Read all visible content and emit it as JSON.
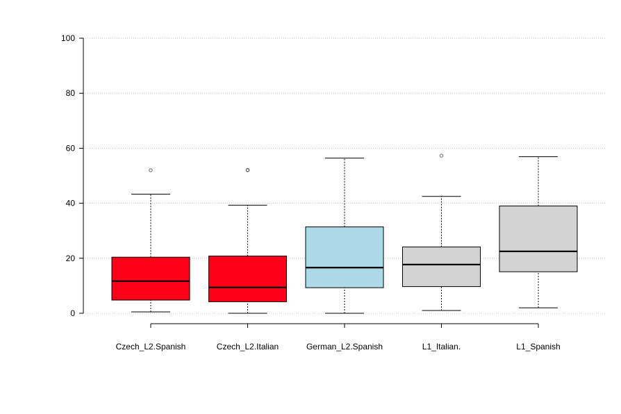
{
  "chart_data": {
    "type": "boxplot",
    "title": "",
    "xlabel": "",
    "ylabel": "",
    "ylim": [
      0,
      100
    ],
    "yticks": [
      0,
      20,
      40,
      60,
      80,
      100
    ],
    "grid": "horizontal dotted",
    "categories": [
      "Czech_L2.Spanish",
      "Czech_L2.Italian",
      "German_L2.Spanish",
      "L1_Italian.",
      "L1_Spanish"
    ],
    "boxes": [
      {
        "name": "Czech_L2.Spanish",
        "color": "#ff0019",
        "whisker_low": 0.5,
        "q1": 4.8,
        "median": 11.7,
        "q3": 20.4,
        "whisker_high": 43.3,
        "outliers": [
          52.0
        ]
      },
      {
        "name": "Czech_L2.Italian",
        "color": "#ff0019",
        "whisker_low": 0.0,
        "q1": 4.2,
        "median": 9.4,
        "q3": 20.8,
        "whisker_high": 39.3,
        "outliers": [
          52.0,
          52.1
        ]
      },
      {
        "name": "German_L2.Spanish",
        "color": "#add8e6",
        "whisker_low": 0.0,
        "q1": 9.3,
        "median": 16.6,
        "q3": 31.4,
        "whisker_high": 56.4,
        "outliers": []
      },
      {
        "name": "L1_Italian.",
        "color": "#d3d3d3",
        "whisker_low": 1.0,
        "q1": 9.7,
        "median": 17.7,
        "q3": 24.1,
        "whisker_high": 42.5,
        "outliers": [
          57.3
        ]
      },
      {
        "name": "L1_Spanish",
        "color": "#d3d3d3",
        "whisker_low": 2.0,
        "q1": 15.1,
        "median": 22.5,
        "q3": 39.0,
        "whisker_high": 56.9,
        "outliers": []
      }
    ]
  }
}
